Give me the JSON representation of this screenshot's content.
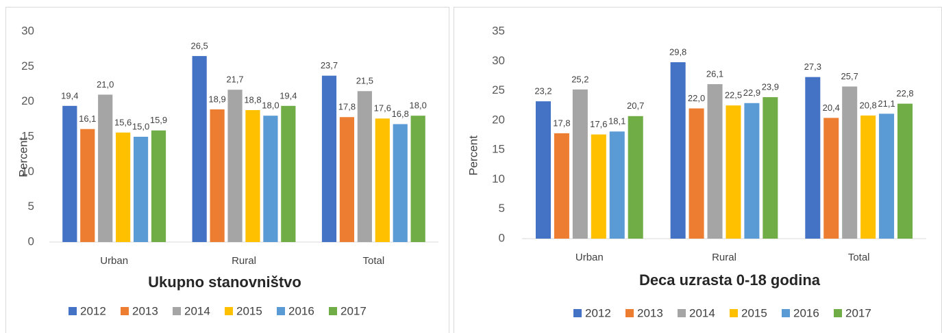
{
  "chart_data": [
    {
      "type": "bar",
      "x_label": "Ukupno stanovništvo",
      "y_label": "Percent",
      "categories": [
        "Urban",
        "Rural",
        "Total"
      ],
      "ylim": [
        0,
        30
      ],
      "yticks": [
        0,
        5,
        10,
        15,
        20,
        25,
        30
      ],
      "series": [
        {
          "name": "2012",
          "color": "#4472c4",
          "values": [
            19.4,
            26.5,
            23.7
          ],
          "value_labels": [
            "19,4",
            "26,5",
            "23,7"
          ]
        },
        {
          "name": "2013",
          "color": "#ed7d31",
          "values": [
            16.1,
            18.9,
            17.8
          ],
          "value_labels": [
            "16,1",
            "18,9",
            "17,8"
          ]
        },
        {
          "name": "2014",
          "color": "#a5a5a5",
          "values": [
            21.0,
            21.7,
            21.5
          ],
          "value_labels": [
            "21,0",
            "21,7",
            "21,5"
          ]
        },
        {
          "name": "2015",
          "color": "#ffc000",
          "values": [
            15.6,
            18.8,
            17.6
          ],
          "value_labels": [
            "15,6",
            "18,8",
            "17,6"
          ]
        },
        {
          "name": "2016",
          "color": "#5b9bd5",
          "values": [
            15.0,
            18.0,
            16.8
          ],
          "value_labels": [
            "15,0",
            "18,0",
            "16,8"
          ]
        },
        {
          "name": "2017",
          "color": "#70ad47",
          "values": [
            15.9,
            19.4,
            18.0
          ],
          "value_labels": [
            "15,9",
            "19,4",
            "18,0"
          ]
        }
      ]
    },
    {
      "type": "bar",
      "x_label": "Deca uzrasta 0-18 godina",
      "y_label": "Percent",
      "categories": [
        "Urban",
        "Rural",
        "Total"
      ],
      "ylim": [
        0,
        35
      ],
      "yticks": [
        0,
        5,
        10,
        15,
        20,
        25,
        30,
        35
      ],
      "series": [
        {
          "name": "2012",
          "color": "#4472c4",
          "values": [
            23.2,
            29.8,
            27.3
          ],
          "value_labels": [
            "23,2",
            "29,8",
            "27,3"
          ]
        },
        {
          "name": "2013",
          "color": "#ed7d31",
          "values": [
            17.8,
            22.0,
            20.4
          ],
          "value_labels": [
            "17,8",
            "22,0",
            "20,4"
          ]
        },
        {
          "name": "2014",
          "color": "#a5a5a5",
          "values": [
            25.2,
            26.1,
            25.7
          ],
          "value_labels": [
            "25,2",
            "26,1",
            "25,7"
          ]
        },
        {
          "name": "2015",
          "color": "#ffc000",
          "values": [
            17.6,
            22.5,
            20.8
          ],
          "value_labels": [
            "17,6",
            "22,5",
            "20,8"
          ]
        },
        {
          "name": "2016",
          "color": "#5b9bd5",
          "values": [
            18.1,
            22.9,
            21.1
          ],
          "value_labels": [
            "18,1",
            "22,9",
            "21,1"
          ]
        },
        {
          "name": "2017",
          "color": "#70ad47",
          "values": [
            20.7,
            23.9,
            22.8
          ],
          "value_labels": [
            "20,7",
            "23,9",
            "22,8"
          ]
        }
      ]
    }
  ]
}
